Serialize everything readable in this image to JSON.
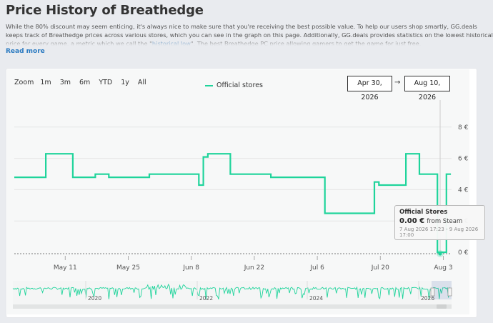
{
  "page": {
    "title": "Price History of Breathedge",
    "intro": {
      "text_before": "While the 80% discount may seem enticing, it's always nice to make sure that you're receiving the best possible value. To help our users shop smartly, GG.deals keeps track of Breathedge prices across various stores, which you can see in the graph on this page. Additionally, GG.deals provides statistics on the lowest historical price for every game, a metric which we call the \"",
      "highlight": "historical low",
      "text_after": "\". The best Breathedge PC price allowing gamers to get the game for just free."
    },
    "read_more": "Read more"
  },
  "zoom": {
    "label": "Zoom",
    "options": [
      "1m",
      "3m",
      "6m",
      "YTD",
      "1y",
      "All"
    ]
  },
  "legend": {
    "label": "Official stores",
    "color": "#1fd49b"
  },
  "range": {
    "from": "Apr 30, 2026",
    "arrow": "→",
    "to": "Aug 10, 2026"
  },
  "tooltip": {
    "title": "Official Stores",
    "price": "0.00 €",
    "source": "from Steam",
    "range": "7 Aug 2026 17:23 - 9 Aug 2026 17:00"
  },
  "chart_data": {
    "type": "line",
    "x_unit": "days since Apr 30, 2026",
    "x_ticks": [
      "May 11",
      "May 25",
      "Jun 8",
      "Jun 22",
      "Jul 6",
      "Jul 20",
      "Aug 3"
    ],
    "y_ticks": [
      "0 €",
      "2 €",
      "4 €",
      "6 €",
      "8 €"
    ],
    "ylim": [
      0,
      9
    ],
    "series": [
      {
        "name": "Official stores",
        "color": "#1fd49b",
        "points": [
          [
            0,
            4.79
          ],
          [
            7,
            4.79
          ],
          [
            7,
            6.29
          ],
          [
            13,
            6.29
          ],
          [
            13,
            4.79
          ],
          [
            18,
            4.79
          ],
          [
            18,
            4.99
          ],
          [
            21,
            4.99
          ],
          [
            21,
            4.79
          ],
          [
            30,
            4.79
          ],
          [
            30,
            4.99
          ],
          [
            41,
            4.99
          ],
          [
            41,
            4.29
          ],
          [
            42,
            4.29
          ],
          [
            42,
            6.09
          ],
          [
            43,
            6.09
          ],
          [
            43,
            6.29
          ],
          [
            48,
            6.29
          ],
          [
            48,
            4.99
          ],
          [
            57,
            4.99
          ],
          [
            57,
            4.79
          ],
          [
            69,
            4.79
          ],
          [
            69,
            2.49
          ],
          [
            80,
            2.49
          ],
          [
            80,
            4.49
          ],
          [
            81,
            4.49
          ],
          [
            81,
            4.29
          ],
          [
            87,
            4.29
          ],
          [
            87,
            6.29
          ],
          [
            90,
            6.29
          ],
          [
            90,
            4.99
          ],
          [
            94,
            4.99
          ],
          [
            94,
            0.0
          ],
          [
            96,
            0.0
          ],
          [
            96,
            4.99
          ],
          [
            97,
            4.99
          ]
        ]
      }
    ],
    "navigator": {
      "x_ticks": [
        "2020",
        "2022",
        "2024",
        "2026"
      ]
    }
  }
}
